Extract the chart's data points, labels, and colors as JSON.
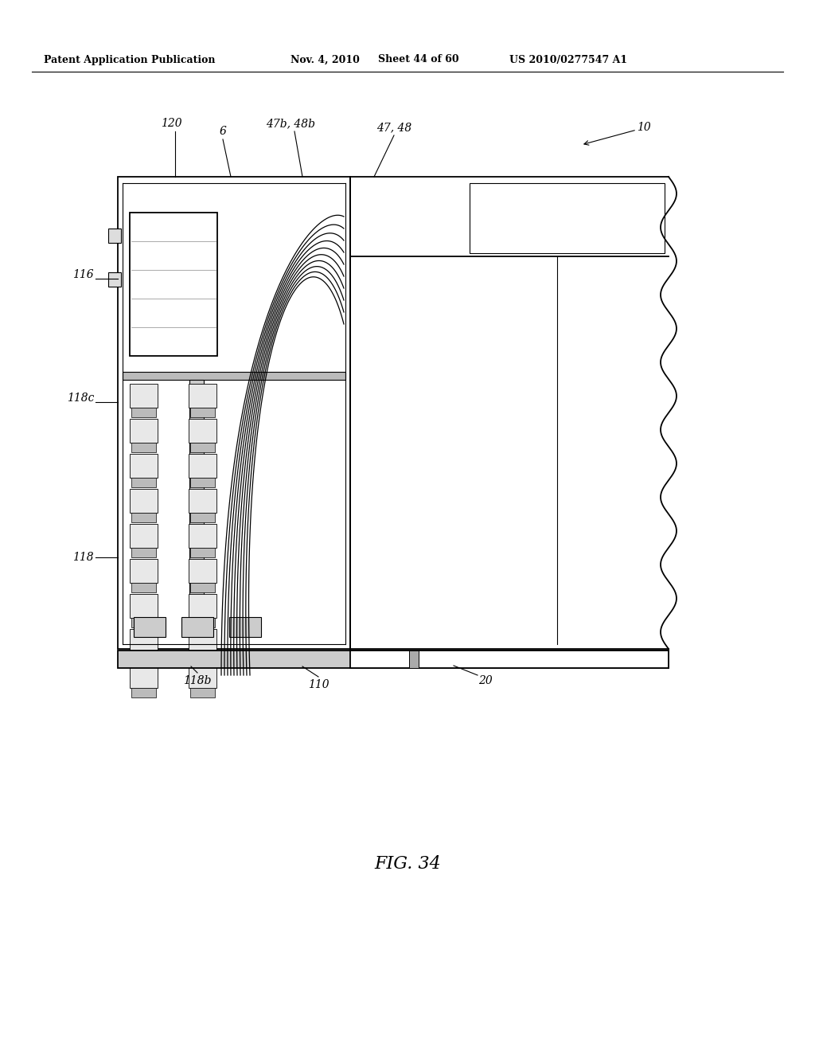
{
  "title": "Patent Application Publication",
  "date": "Nov. 4, 2010",
  "sheet": "Sheet 44 of 60",
  "patent_num": "US 2010/0277547 A1",
  "fig_label": "FIG. 34",
  "background": "#ffffff",
  "line_color": "#000000",
  "gray_fill": "#cccccc"
}
